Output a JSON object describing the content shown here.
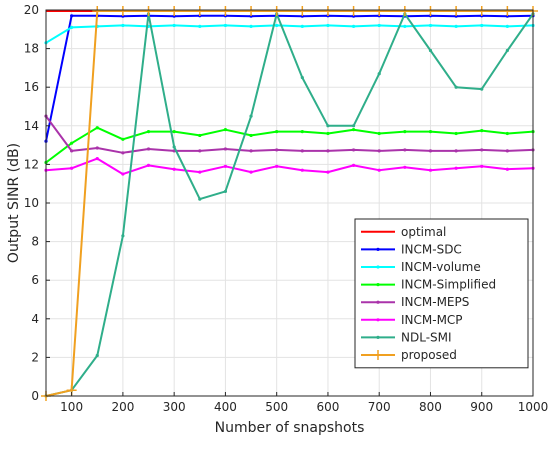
{
  "chart_data": {
    "type": "line",
    "xlabel": "Number of snapshots",
    "ylabel": "Output SINR (dB)",
    "xlim": [
      50,
      1000
    ],
    "ylim": [
      0,
      20
    ],
    "xticks": [
      100,
      200,
      300,
      400,
      500,
      600,
      700,
      800,
      900,
      1000
    ],
    "yticks": [
      0,
      2,
      4,
      6,
      8,
      10,
      12,
      14,
      16,
      18,
      20
    ],
    "grid": true,
    "legend_position": "bottom-right",
    "x": [
      50,
      100,
      150,
      200,
      250,
      300,
      350,
      400,
      450,
      500,
      550,
      600,
      650,
      700,
      750,
      800,
      850,
      900,
      950,
      1000
    ],
    "series": [
      {
        "name": "optimal",
        "color": "#ff0000",
        "marker": "none",
        "values": [
          19.95,
          19.95,
          19.95,
          19.95,
          19.95,
          19.95,
          19.95,
          19.95,
          19.95,
          19.95,
          19.95,
          19.95,
          19.95,
          19.95,
          19.95,
          19.95,
          19.95,
          19.95,
          19.95,
          19.95
        ]
      },
      {
        "name": "INCM-SDC",
        "color": "#0000ff",
        "marker": "dot",
        "values": [
          13.2,
          19.7,
          19.7,
          19.68,
          19.7,
          19.68,
          19.7,
          19.7,
          19.68,
          19.7,
          19.68,
          19.7,
          19.68,
          19.7,
          19.68,
          19.7,
          19.68,
          19.7,
          19.68,
          19.7
        ]
      },
      {
        "name": "INCM-volume",
        "color": "#00ffff",
        "marker": "dot",
        "values": [
          18.3,
          19.1,
          19.15,
          19.2,
          19.15,
          19.2,
          19.15,
          19.2,
          19.15,
          19.2,
          19.15,
          19.2,
          19.15,
          19.2,
          19.15,
          19.2,
          19.15,
          19.2,
          19.15,
          19.2
        ]
      },
      {
        "name": "INCM-Simplified",
        "color": "#00ff00",
        "marker": "dot",
        "values": [
          12.1,
          13.1,
          13.9,
          13.3,
          13.7,
          13.7,
          13.5,
          13.8,
          13.5,
          13.7,
          13.7,
          13.6,
          13.8,
          13.6,
          13.7,
          13.7,
          13.6,
          13.75,
          13.6,
          13.7
        ]
      },
      {
        "name": "INCM-MEPS",
        "color": "#aa33aa",
        "marker": "dot",
        "values": [
          14.5,
          12.7,
          12.85,
          12.6,
          12.8,
          12.7,
          12.7,
          12.8,
          12.7,
          12.75,
          12.7,
          12.7,
          12.75,
          12.7,
          12.75,
          12.7,
          12.7,
          12.75,
          12.7,
          12.75
        ]
      },
      {
        "name": "INCM-MCP",
        "color": "#ff00ff",
        "marker": "dot",
        "values": [
          11.7,
          11.8,
          12.3,
          11.5,
          11.95,
          11.75,
          11.6,
          11.9,
          11.6,
          11.9,
          11.7,
          11.6,
          11.95,
          11.7,
          11.85,
          11.7,
          11.8,
          11.9,
          11.75,
          11.8
        ]
      },
      {
        "name": "NDL-SMI",
        "color": "#2fae8a",
        "marker": "dot",
        "values": [
          0.0,
          0.3,
          2.1,
          8.3,
          19.8,
          12.9,
          10.2,
          10.6,
          14.5,
          19.8,
          16.5,
          14.0,
          14.0,
          16.7,
          19.8,
          17.9,
          16.0,
          15.9,
          17.9,
          19.8
        ]
      },
      {
        "name": "proposed",
        "color": "#f0a020",
        "marker": "plus",
        "values": [
          0.0,
          0.3,
          19.95,
          19.95,
          19.95,
          19.95,
          19.95,
          19.95,
          19.95,
          19.95,
          19.95,
          19.95,
          19.95,
          19.95,
          19.95,
          19.95,
          19.95,
          19.95,
          19.95,
          19.95
        ]
      }
    ]
  }
}
